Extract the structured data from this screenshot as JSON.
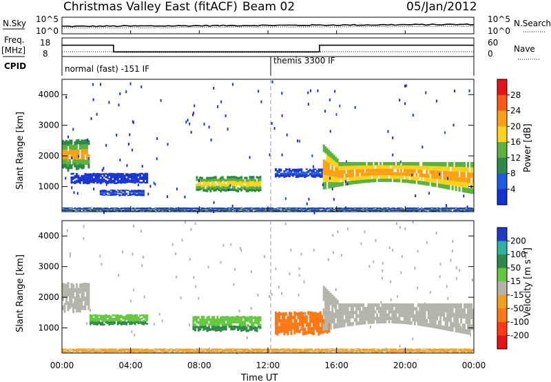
{
  "header": {
    "title": "Christmas Valley East (fitACF)",
    "beam": "Beam 02",
    "date": "05/Jan/2012"
  },
  "top_panels": {
    "nsky_label": "N.Sky",
    "nsearch_label": "N.Search",
    "count_ticks": [
      "10^5",
      "10^0"
    ],
    "freq_label": "Freq.",
    "freq_unit": "[MHz]",
    "freq_ticks": [
      "18",
      "8"
    ],
    "nave_label": "Nave",
    "nave_ticks": [
      "60",
      "0"
    ],
    "cpid_label": "CPID",
    "cpid_segments": [
      {
        "label": "normal (fast) -151 IF",
        "start_hour": 0,
        "end_hour": 12
      },
      {
        "label": "themis 3300 IF",
        "start_hour": 12,
        "end_hour": 24
      }
    ],
    "freq_steps": [
      {
        "start_hour": 0,
        "end_hour": 3,
        "mhz": 17
      },
      {
        "start_hour": 3,
        "end_hour": 15,
        "mhz": 11
      },
      {
        "start_hour": 15,
        "end_hour": 24,
        "mhz": 17
      }
    ]
  },
  "axes": {
    "x_ticks": [
      "00:00",
      "04:00",
      "08:00",
      "12:00",
      "16:00",
      "20:00",
      "00:00"
    ],
    "x_label": "Time UT",
    "y_ticks": [
      "1000",
      "2000",
      "3000",
      "4000"
    ],
    "y_label": "Slant Range [km]"
  },
  "power_scale": {
    "label": "Power [dB]",
    "ticks": [
      "4",
      "8",
      "12",
      "16",
      "20",
      "24",
      "28"
    ],
    "colors": [
      "#1432d2",
      "#1e5ae6",
      "#2d8a46",
      "#5ab43c",
      "#ffd21e",
      "#ffa014",
      "#ff5a14",
      "#e61414"
    ]
  },
  "velocity_scale": {
    "label": "Velocity [m s⁻¹]",
    "ticks": [
      "200",
      "100",
      "50",
      "15",
      "-15",
      "-50",
      "-100",
      "-200"
    ],
    "colors": [
      "#1e3cc8",
      "#28b4a0",
      "#2d8a46",
      "#64c83c",
      "#b4b4aa",
      "#f0a01e",
      "#ff7814",
      "#ff3c14",
      "#e61414"
    ]
  },
  "chart_data": {
    "type": "heatmap",
    "x_range_hours": [
      0,
      24
    ],
    "y_range_km": [
      180,
      4500
    ],
    "grid": false,
    "power_regions": [
      {
        "name": "early E-region",
        "t0": 0.0,
        "t1": 1.6,
        "r0": 1550,
        "r1": 2550,
        "value_db": 24
      },
      {
        "name": "band 1",
        "t0": 0.5,
        "t1": 5.0,
        "r0": 1100,
        "r1": 1450,
        "value_db": 6
      },
      {
        "name": "band 2",
        "t0": 2.2,
        "t1": 4.8,
        "r0": 700,
        "r1": 900,
        "value_db": 8
      },
      {
        "name": "midnight echo",
        "t0": 7.8,
        "t1": 11.6,
        "r0": 850,
        "r1": 1350,
        "value_db": 22
      },
      {
        "name": "post 12 band",
        "t0": 12.4,
        "t1": 15.6,
        "r0": 1300,
        "r1": 1600,
        "value_db": 8
      },
      {
        "name": "late echo",
        "t0": 15.2,
        "t1": 24.0,
        "r0": 850,
        "r1": 2400,
        "value_db": 26
      },
      {
        "name": "ground scatter",
        "t0": 0.0,
        "t1": 24.0,
        "r0": 200,
        "r1": 320,
        "value_db": 12
      }
    ],
    "velocity_regions": [
      {
        "name": "early grey",
        "t0": 0.0,
        "t1": 1.6,
        "r0": 1550,
        "r1": 2500,
        "value_ms": 0
      },
      {
        "name": "green band",
        "t0": 1.6,
        "t1": 5.0,
        "r0": 1100,
        "r1": 1450,
        "value_ms": 40
      },
      {
        "name": "green echo",
        "t0": 7.6,
        "t1": 11.6,
        "r0": 900,
        "r1": 1400,
        "value_ms": 30
      },
      {
        "name": "orange echo",
        "t0": 12.4,
        "t1": 15.6,
        "r0": 800,
        "r1": 1550,
        "value_ms": -60
      },
      {
        "name": "grey late",
        "t0": 15.2,
        "t1": 24.0,
        "r0": 850,
        "r1": 2300,
        "value_ms": 0
      },
      {
        "name": "orange ground",
        "t0": 0.0,
        "t1": 24.0,
        "r0": 200,
        "r1": 330,
        "value_ms": -40
      }
    ]
  }
}
